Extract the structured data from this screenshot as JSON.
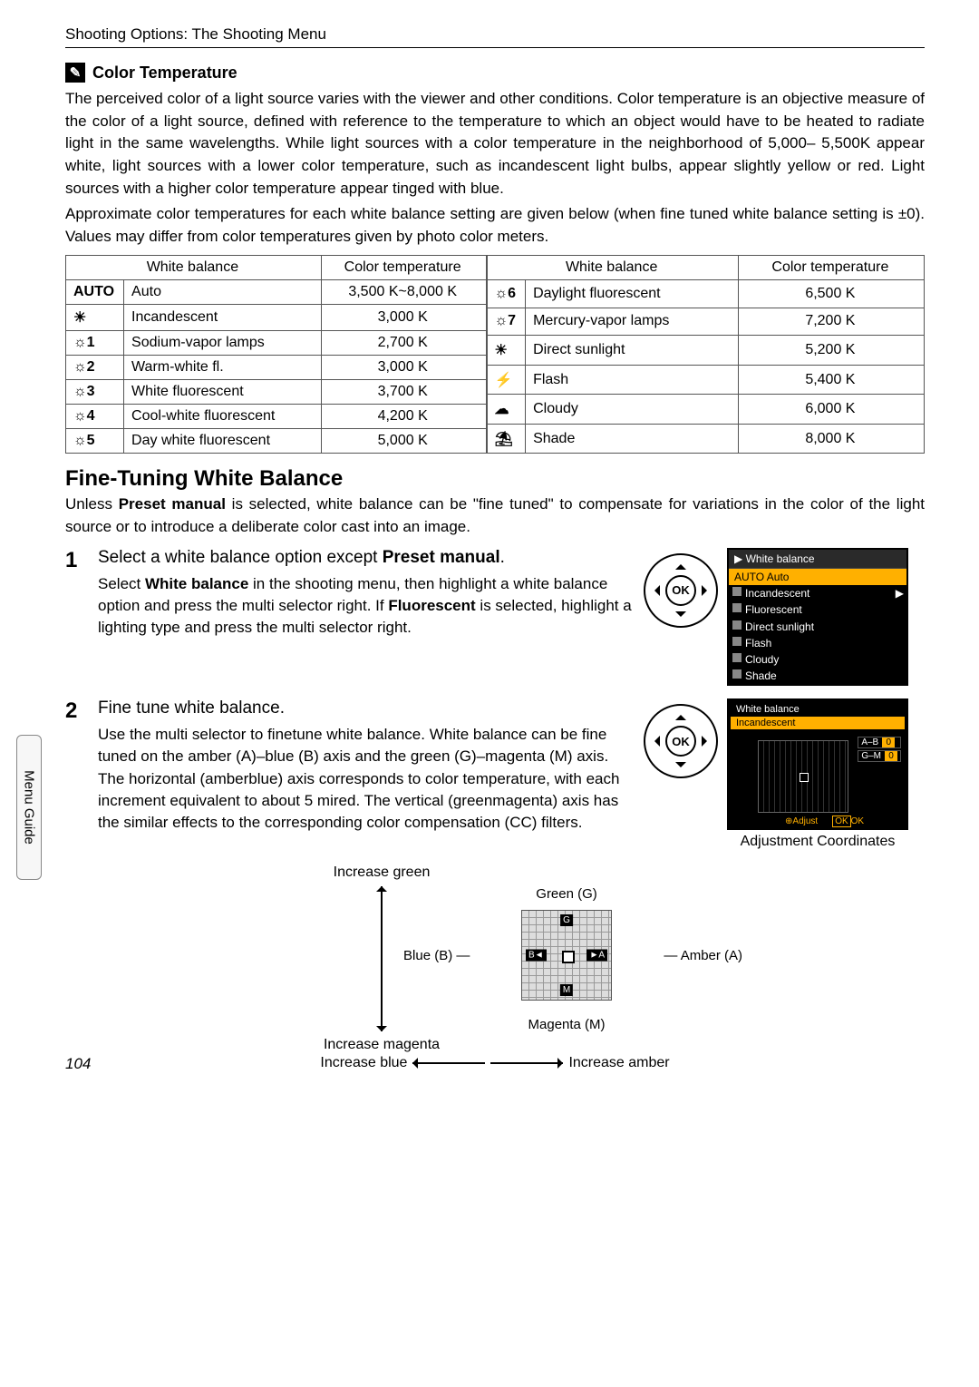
{
  "running_head": "Shooting Options: The Shooting Menu",
  "side_tab": "Menu Guide",
  "page_num": "104",
  "note": {
    "title": "Color Temperature",
    "p1": "The perceived color of a light source varies with the viewer and other conditions. Color temperature is an objective measure of the color of a light source, defined with reference to the temperature to which an object would have to be heated to radiate light in the same wavelengths. While light sources with a color temperature in the neighborhood of 5,000– 5,500K appear white, light sources with a lower color temperature, such as incandescent light bulbs, appear slightly yellow or red. Light sources with a higher color temperature appear tinged with blue.",
    "p2": "Approximate color temperatures for each white balance setting are given below (when fine tuned white balance setting is ±0). Values may differ from color temperatures given by photo color meters."
  },
  "table": {
    "head": {
      "wb": "White balance",
      "ct": "Color temperature"
    },
    "left": [
      {
        "icon": "AUTO",
        "label": "Auto",
        "temp": "3,500 K~8,000 K"
      },
      {
        "icon": "☀",
        "label": "Incandescent",
        "temp": "3,000 K"
      },
      {
        "icon": "☼1",
        "label": "Sodium-vapor lamps",
        "temp": "2,700 K"
      },
      {
        "icon": "☼2",
        "label": "Warm-white fl.",
        "temp": "3,000 K"
      },
      {
        "icon": "☼3",
        "label": "White fluorescent",
        "temp": "3,700 K"
      },
      {
        "icon": "☼4",
        "label": "Cool-white fluorescent",
        "temp": "4,200 K"
      },
      {
        "icon": "☼5",
        "label": "Day white fluorescent",
        "temp": "5,000 K"
      }
    ],
    "right": [
      {
        "icon": "☼6",
        "label": "Daylight fluorescent",
        "temp": "6,500 K"
      },
      {
        "icon": "☼7",
        "label": "Mercury-vapor lamps",
        "temp": "7,200 K"
      },
      {
        "icon": "☀",
        "label": "Direct sunlight",
        "temp": "5,200 K"
      },
      {
        "icon": "⚡",
        "label": "Flash",
        "temp": "5,400 K"
      },
      {
        "icon": "☁",
        "label": "Cloudy",
        "temp": "6,000 K"
      },
      {
        "icon": "⛱",
        "label": "Shade",
        "temp": "8,000 K"
      }
    ]
  },
  "section": {
    "title": "Fine-Tuning White Balance",
    "intro_pre": "Unless ",
    "intro_bold1": "Preset manual",
    "intro_post": " is selected, white balance can be \"fine tuned\" to compensate for variations in the color of the light source or to introduce a deliberate color cast into an image."
  },
  "step1": {
    "num": "1",
    "title_pre": "Select a white balance option except ",
    "title_bold": "Preset manual",
    "title_post": ".",
    "body_pre": "Select ",
    "body_b1": "White balance",
    "body_mid": " in the shooting menu, then highlight a white balance option and press the multi selector right. If ",
    "body_b2": "Fluorescent",
    "body_post": " is selected, highlight a lighting type and press the multi selector right."
  },
  "lcd1": {
    "title": "White balance",
    "rows": [
      "AUTO Auto",
      "Incandescent",
      "Fluorescent",
      "Direct sunlight",
      "Flash",
      "Cloudy",
      "Shade"
    ]
  },
  "step2": {
    "num": "2",
    "title": "Fine tune white balance.",
    "body": "Use the multi selector to finetune white balance. White balance can be fine tuned on the amber (A)–blue (B) axis and the green (G)–magenta (M) axis. The horizontal (amberblue) axis corresponds to color temperature, with each increment equivalent to about 5 mired. The vertical (greenmagenta) axis has the similar effects to the corresponding color compensation (CC) filters."
  },
  "lcd2": {
    "title": "White balance",
    "sub": "Incandescent",
    "ab": "A–B",
    "ab_v": "0",
    "gm": "G–M",
    "gm_v": "0",
    "foot_l": "djust",
    "foot_r": "OK"
  },
  "caption2": "Adjustment Coordinates",
  "diag": {
    "green": "Green (G)",
    "magenta": "Magenta (M)",
    "blue": "Blue (B)",
    "amber": "Amber (A)",
    "inc_green": "Increase green",
    "inc_magenta": "Increase magenta",
    "inc_blue": "Increase blue",
    "inc_amber": "Increase amber",
    "g": "G",
    "m": "M",
    "b": "B◄",
    "a": "►A"
  }
}
